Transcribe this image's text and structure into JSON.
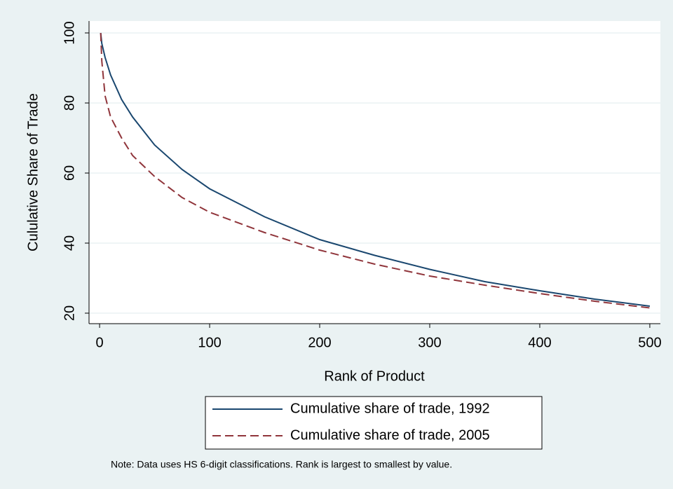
{
  "chart_data": {
    "type": "line",
    "x_label": "Rank of Product",
    "y_label": "Cululative Share of Trade",
    "note": "Note:  Data uses HS 6-digit classifications.  Rank is largest to smallest by value.",
    "x": [
      1,
      2,
      5,
      10,
      20,
      30,
      50,
      75,
      100,
      150,
      200,
      250,
      300,
      350,
      400,
      450,
      500
    ],
    "series": [
      {
        "name": "Cumulative share of trade, 1992",
        "color": "#1a476f",
        "dash": false,
        "values": [
          100,
          97,
          93,
          88,
          81,
          76,
          68,
          61,
          55.5,
          47.5,
          41,
          36.5,
          32.5,
          29,
          26.4,
          24,
          22
        ]
      },
      {
        "name": "Cumulative share of trade, 2005",
        "color": "#90353b",
        "dash": true,
        "values": [
          100,
          92,
          82,
          76,
          70,
          65,
          59,
          53,
          48.8,
          43,
          38,
          34,
          30.6,
          28,
          25.6,
          23.4,
          21.5
        ]
      }
    ],
    "xlim": [
      -9.6,
      509.6
    ],
    "ylim": [
      17,
      103.4
    ],
    "xticks": [
      0,
      100,
      200,
      300,
      400,
      500
    ],
    "yticks": [
      20,
      40,
      60,
      80,
      100
    ],
    "grid": true
  }
}
